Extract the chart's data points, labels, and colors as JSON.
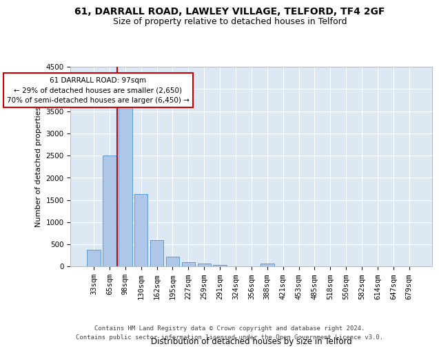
{
  "title1": "61, DARRALL ROAD, LAWLEY VILLAGE, TELFORD, TF4 2GF",
  "title2": "Size of property relative to detached houses in Telford",
  "xlabel": "Distribution of detached houses by size in Telford",
  "ylabel": "Number of detached properties",
  "categories": [
    "33sqm",
    "65sqm",
    "98sqm",
    "130sqm",
    "162sqm",
    "195sqm",
    "227sqm",
    "259sqm",
    "291sqm",
    "324sqm",
    "356sqm",
    "388sqm",
    "421sqm",
    "453sqm",
    "485sqm",
    "518sqm",
    "550sqm",
    "582sqm",
    "614sqm",
    "647sqm",
    "679sqm"
  ],
  "values": [
    370,
    2500,
    3720,
    1630,
    590,
    220,
    100,
    60,
    40,
    0,
    0,
    60,
    0,
    0,
    0,
    0,
    0,
    0,
    0,
    0,
    0
  ],
  "bar_color": "#aec6e8",
  "bar_edge_color": "#5b9bd5",
  "vline_color": "#cc0000",
  "annotation_text": "61 DARRALL ROAD: 97sqm\n← 29% of detached houses are smaller (2,650)\n70% of semi-detached houses are larger (6,450) →",
  "annotation_box_color": "#ffffff",
  "annotation_box_edge": "#cc0000",
  "ylim": [
    0,
    4500
  ],
  "yticks": [
    0,
    500,
    1000,
    1500,
    2000,
    2500,
    3000,
    3500,
    4000,
    4500
  ],
  "bg_color": "#dce9f5",
  "grid_color": "#ffffff",
  "footer": "Contains HM Land Registry data © Crown copyright and database right 2024.\nContains public sector information licensed under the Open Government Licence v3.0.",
  "title1_fontsize": 10,
  "title2_fontsize": 9,
  "xlabel_fontsize": 8.5,
  "ylabel_fontsize": 8,
  "tick_fontsize": 7.5,
  "footer_fontsize": 6.5
}
